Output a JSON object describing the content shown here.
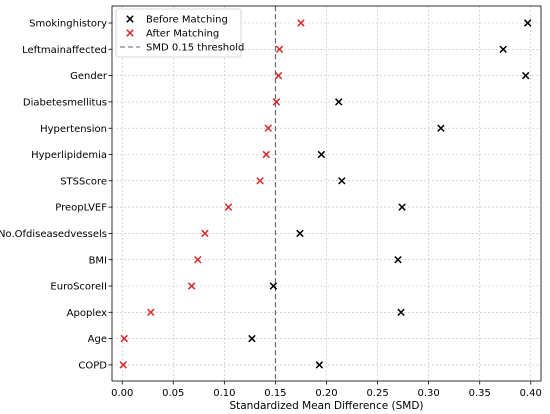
{
  "chart_data": {
    "type": "scatter",
    "title": "",
    "xlabel": "Standardized Mean Difference (SMD)",
    "ylabel": "",
    "xlim": [
      -0.01,
      0.41
    ],
    "xticks": [
      "0.00",
      "0.05",
      "0.10",
      "0.15",
      "0.20",
      "0.25",
      "0.30",
      "0.35",
      "0.40"
    ],
    "grid": true,
    "legend_position": "top-left",
    "categories": [
      "Smokinghistory",
      "Leftmainaffected",
      "Gender",
      "Diabetesmellitus",
      "Hypertension",
      "Hyperlipidemia",
      "STSScore",
      "PreopLVEF",
      "No.Ofdiseasedvessels",
      "BMI",
      "EuroScoreII",
      "Apoplex",
      "Age",
      "COPD"
    ],
    "series": [
      {
        "name": "Before Matching",
        "marker": "x",
        "color": "#000000",
        "values": [
          0.397,
          0.373,
          0.395,
          0.212,
          0.312,
          0.195,
          0.215,
          0.274,
          0.174,
          0.27,
          0.148,
          0.273,
          0.127,
          0.193
        ]
      },
      {
        "name": "After Matching",
        "marker": "x",
        "color": "#d62728",
        "values": [
          0.175,
          0.154,
          0.153,
          0.151,
          0.143,
          0.141,
          0.135,
          0.104,
          0.081,
          0.074,
          0.068,
          0.028,
          0.002,
          0.001
        ]
      }
    ],
    "threshold": {
      "value": 0.15,
      "label": "SMD 0.15 threshold",
      "color": "#666666"
    }
  }
}
